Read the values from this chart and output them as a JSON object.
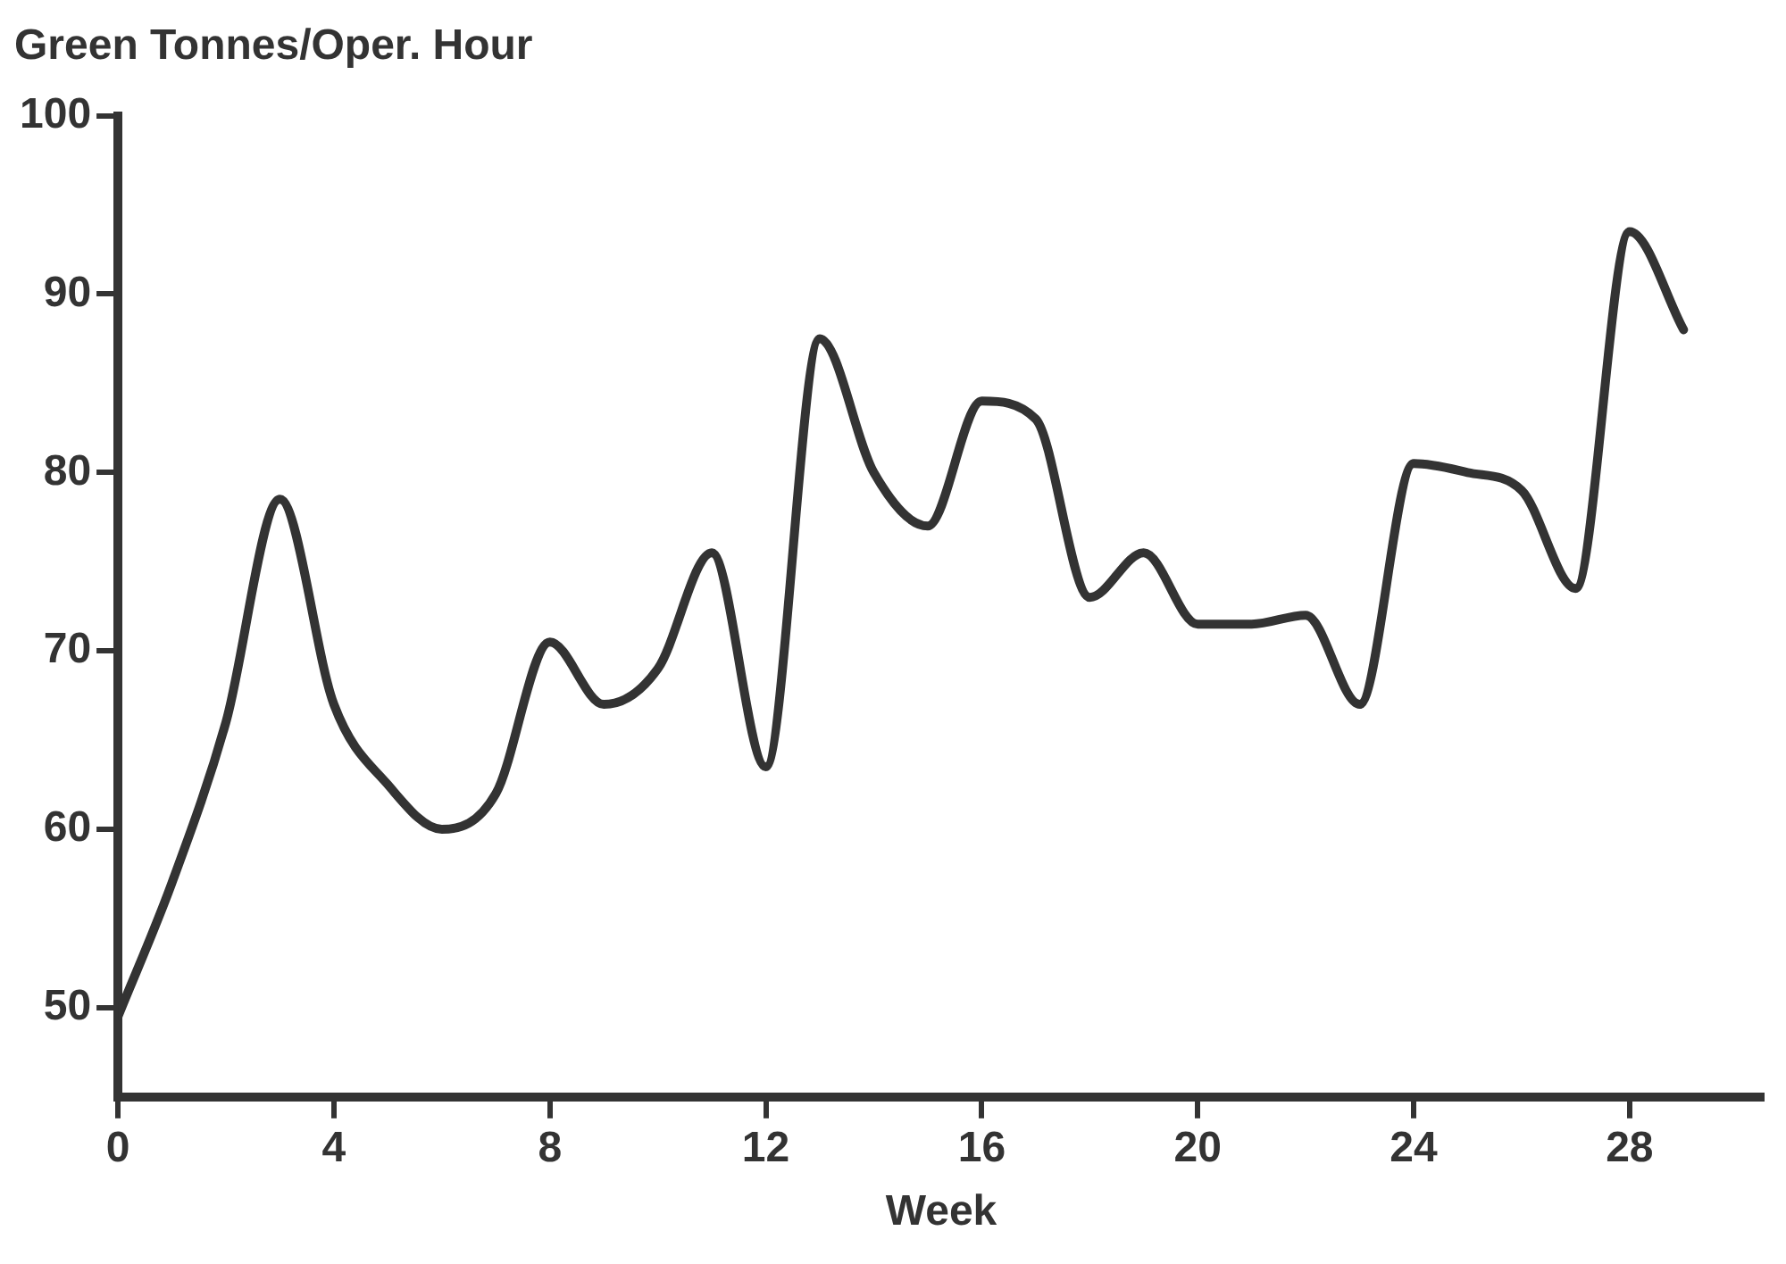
{
  "chart_data": {
    "type": "line",
    "title": "Green Tonnes/Oper. Hour",
    "xlabel": "Week",
    "x": [
      0,
      1,
      2,
      3,
      4,
      5,
      6,
      7,
      8,
      9,
      10,
      11,
      12,
      13,
      14,
      15,
      16,
      17,
      18,
      19,
      20,
      21,
      22,
      23,
      24,
      25,
      26,
      27,
      28,
      29
    ],
    "series": [
      {
        "color": "#333333",
        "values": [
          49.5,
          57,
          66,
          78.5,
          67,
          62.5,
          60,
          62,
          70.5,
          67,
          69,
          75.5,
          63.5,
          87.5,
          80,
          77,
          84,
          83,
          73,
          75.5,
          71.5,
          71.5,
          72,
          67,
          80.5,
          80,
          79,
          73.5,
          93.5,
          88
        ]
      }
    ],
    "xlim": [
      0,
      30.5
    ],
    "xticks": [
      0,
      4,
      8,
      12,
      16,
      20,
      24,
      28
    ],
    "ylim": [
      45,
      100
    ],
    "yticks": [
      50,
      60,
      70,
      80,
      90,
      100
    ],
    "legend": false,
    "marker": "none",
    "line_style": "solid"
  }
}
